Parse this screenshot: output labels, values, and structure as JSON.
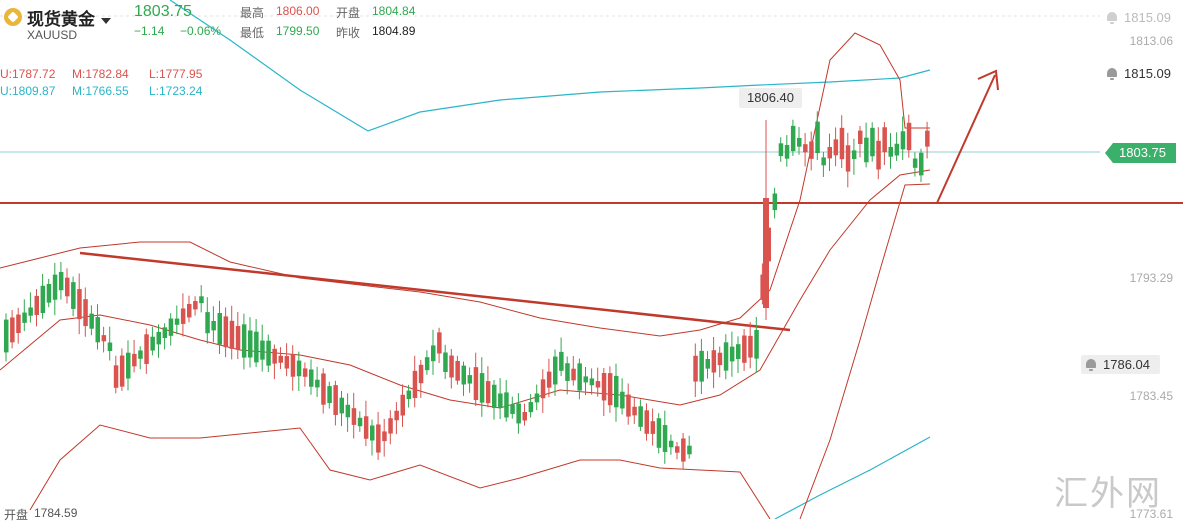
{
  "header": {
    "title": "现货黄金",
    "symbol": "XAUUSD",
    "price": "1803.75",
    "change": "−1.14",
    "change_pct": "−0.06%",
    "high_label": "最高",
    "high": "1806.00",
    "open_label": "开盘",
    "open": "1804.84",
    "low_label": "最低",
    "low": "1799.50",
    "prev_label": "昨收",
    "prev": "1804.89"
  },
  "indicators": {
    "bb1_u": "U:1787.72",
    "bb1_m": "M:1782.84",
    "bb1_l": "L:1777.95",
    "bb2_u": "U:1809.87",
    "bb2_m": "M:1766.55",
    "bb2_l": "L:1723.24"
  },
  "axis": {
    "labels": [
      "1815.09",
      "1813.06",
      "1793.29",
      "1783.45",
      "1773.61"
    ]
  },
  "alerts": {
    "a1": "1815.09",
    "a2": "1815.09",
    "a3": "1786.04"
  },
  "current_price_tag": "1803.75",
  "high_marker": "1806.40",
  "footer": {
    "open_label": "开盘",
    "open_value": "1784.59"
  },
  "watermark": "汇外网",
  "colors": {
    "up": "#d9534f",
    "down": "#2fa84f",
    "bb_outer": "#2bb5c9",
    "bb_inner": "#c0392b",
    "trendline": "#c0392b"
  }
}
